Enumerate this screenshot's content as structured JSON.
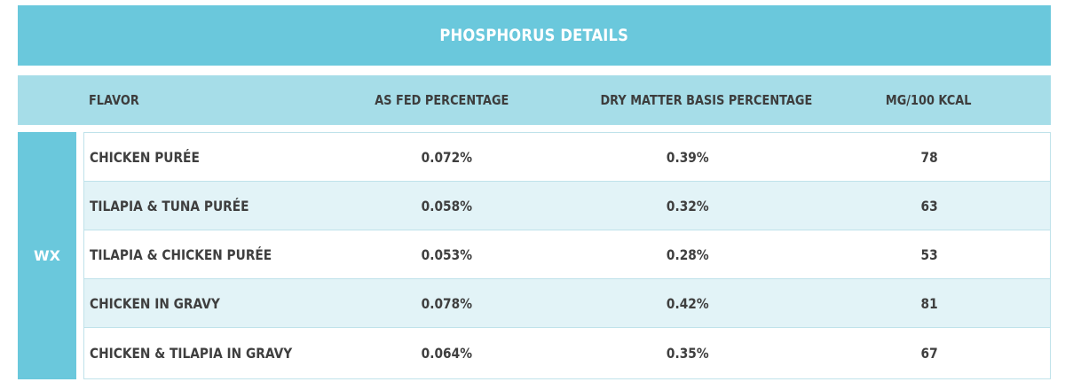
{
  "title": "PHOSPHORUS DETAILS",
  "headers": {
    "flavor": "FLAVOR",
    "as_fed": "AS FED PERCENTAGE",
    "dry_matter": "DRY MATTER BASIS PERCENTAGE",
    "mg_kcal": "MG/100 KCAL"
  },
  "group_label": "WX",
  "rows": [
    {
      "flavor": "CHICKEN PURÉE",
      "as_fed": "0.072%",
      "dry_matter": "0.39%",
      "mg_kcal": "78"
    },
    {
      "flavor": "TILAPIA & TUNA PURÉE",
      "as_fed": "0.058%",
      "dry_matter": "0.32%",
      "mg_kcal": "63"
    },
    {
      "flavor": "TILAPIA & CHICKEN PURÉE",
      "as_fed": "0.053%",
      "dry_matter": "0.28%",
      "mg_kcal": "53"
    },
    {
      "flavor": "CHICKEN IN GRAVY",
      "as_fed": "0.078%",
      "dry_matter": "0.42%",
      "mg_kcal": "81"
    },
    {
      "flavor": "CHICKEN & TILAPIA IN GRAVY",
      "as_fed": "0.064%",
      "dry_matter": "0.35%",
      "mg_kcal": "67"
    }
  ],
  "colors": {
    "title_bg": "#6ac8dc",
    "header_bg": "#a6dde8",
    "row_alt_bg": "#e2f3f7",
    "text": "#3f3f3f"
  }
}
